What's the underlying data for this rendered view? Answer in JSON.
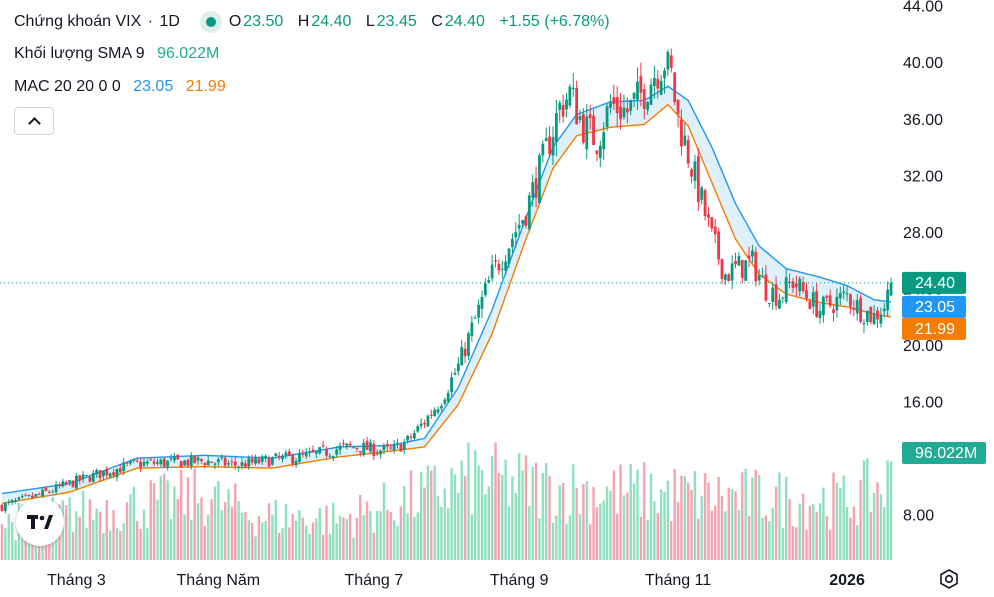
{
  "legend": {
    "symbol": "Chứng khoán VIX",
    "dot": "·",
    "interval": "1D",
    "open_label": "O",
    "open": "23.50",
    "high_label": "H",
    "high": "24.40",
    "low_label": "L",
    "low": "23.45",
    "close_label": "C",
    "close": "24.40",
    "change": "+1.55 (+6.78%)",
    "volume_title": "Khối lượng SMA 9",
    "volume_value": "96.022M",
    "mac_title": "MAC 20 20 0 0",
    "mac_upper": "23.05",
    "mac_lower": "21.99"
  },
  "colors": {
    "up": "#089981",
    "down": "#f23645",
    "mac_upper": "#2196f3",
    "mac_lower": "#f57c00",
    "volume_up": "#8ee0c0",
    "volume_down": "#f5a3b0",
    "band_fill": "#d6ecf7"
  },
  "chart_data": {
    "type": "candlestick",
    "ylim": [
      4.8,
      44.4
    ],
    "y_ticks": [
      "44.00",
      "40.00",
      "36.00",
      "32.00",
      "28.00",
      "24.00",
      "20.00",
      "16.00",
      "12.00",
      "8.00"
    ],
    "x_ticks": [
      "Tháng 3",
      "Tháng Năm",
      "Tháng 7",
      "Tháng 9",
      "Tháng 11",
      "2026"
    ],
    "price_labels": {
      "close": "24.40",
      "mac_upper": "23.05",
      "mac_lower": "21.99",
      "volume": "96.022M"
    },
    "close_path": [
      [
        0,
        8.6
      ],
      [
        10,
        9.3
      ],
      [
        20,
        10.2
      ],
      [
        30,
        11.0
      ],
      [
        40,
        11.6
      ],
      [
        50,
        11.7
      ],
      [
        60,
        11.8
      ],
      [
        70,
        11.5
      ],
      [
        80,
        11.9
      ],
      [
        90,
        12.1
      ],
      [
        100,
        12.7
      ],
      [
        105,
        12.8
      ],
      [
        110,
        12.6
      ],
      [
        115,
        12.5
      ],
      [
        120,
        13.2
      ],
      [
        125,
        14.6
      ],
      [
        130,
        16.2
      ],
      [
        135,
        18.5
      ],
      [
        140,
        21.8
      ],
      [
        145,
        25.0
      ],
      [
        150,
        27.2
      ],
      [
        155,
        29.5
      ],
      [
        160,
        33.0
      ],
      [
        165,
        36.8
      ],
      [
        168,
        37.8
      ],
      [
        172,
        35.5
      ],
      [
        176,
        34.5
      ],
      [
        180,
        37.0
      ],
      [
        185,
        36.5
      ],
      [
        190,
        38.0
      ],
      [
        193,
        39.2
      ],
      [
        196,
        40.1
      ],
      [
        198,
        39.0
      ],
      [
        200,
        36.0
      ],
      [
        203,
        33.5
      ],
      [
        206,
        31.0
      ],
      [
        210,
        27.5
      ],
      [
        214,
        25.0
      ],
      [
        218,
        25.5
      ],
      [
        222,
        25.8
      ],
      [
        226,
        24.0
      ],
      [
        230,
        23.5
      ],
      [
        234,
        24.5
      ],
      [
        238,
        23.5
      ],
      [
        242,
        22.5
      ],
      [
        246,
        23.0
      ],
      [
        250,
        23.5
      ],
      [
        254,
        22.5
      ],
      [
        258,
        22.0
      ],
      [
        261,
        22.8
      ],
      [
        263,
        24.4
      ]
    ],
    "mac_upper": [
      [
        0,
        9.5
      ],
      [
        20,
        10.2
      ],
      [
        40,
        12.0
      ],
      [
        60,
        12.2
      ],
      [
        80,
        12.0
      ],
      [
        100,
        12.8
      ],
      [
        115,
        12.9
      ],
      [
        125,
        13.4
      ],
      [
        135,
        17.0
      ],
      [
        145,
        22.5
      ],
      [
        155,
        29.0
      ],
      [
        163,
        34.0
      ],
      [
        170,
        36.3
      ],
      [
        180,
        37.2
      ],
      [
        190,
        37.3
      ],
      [
        197,
        38.3
      ],
      [
        203,
        37.3
      ],
      [
        210,
        34.0
      ],
      [
        217,
        30.0
      ],
      [
        224,
        27.0
      ],
      [
        232,
        25.4
      ],
      [
        242,
        24.8
      ],
      [
        250,
        24.2
      ],
      [
        258,
        23.2
      ],
      [
        263,
        23.05
      ]
    ],
    "mac_lower": [
      [
        0,
        8.8
      ],
      [
        20,
        9.6
      ],
      [
        40,
        11.3
      ],
      [
        60,
        11.4
      ],
      [
        80,
        11.3
      ],
      [
        100,
        12.1
      ],
      [
        115,
        12.5
      ],
      [
        125,
        12.8
      ],
      [
        135,
        15.8
      ],
      [
        145,
        20.8
      ],
      [
        155,
        27.5
      ],
      [
        163,
        32.5
      ],
      [
        170,
        34.8
      ],
      [
        180,
        35.4
      ],
      [
        190,
        35.6
      ],
      [
        197,
        37.0
      ],
      [
        203,
        35.5
      ],
      [
        210,
        31.5
      ],
      [
        217,
        27.5
      ],
      [
        224,
        25.0
      ],
      [
        232,
        23.6
      ],
      [
        242,
        23.0
      ],
      [
        250,
        22.7
      ],
      [
        258,
        22.2
      ],
      [
        263,
        21.99
      ]
    ]
  }
}
